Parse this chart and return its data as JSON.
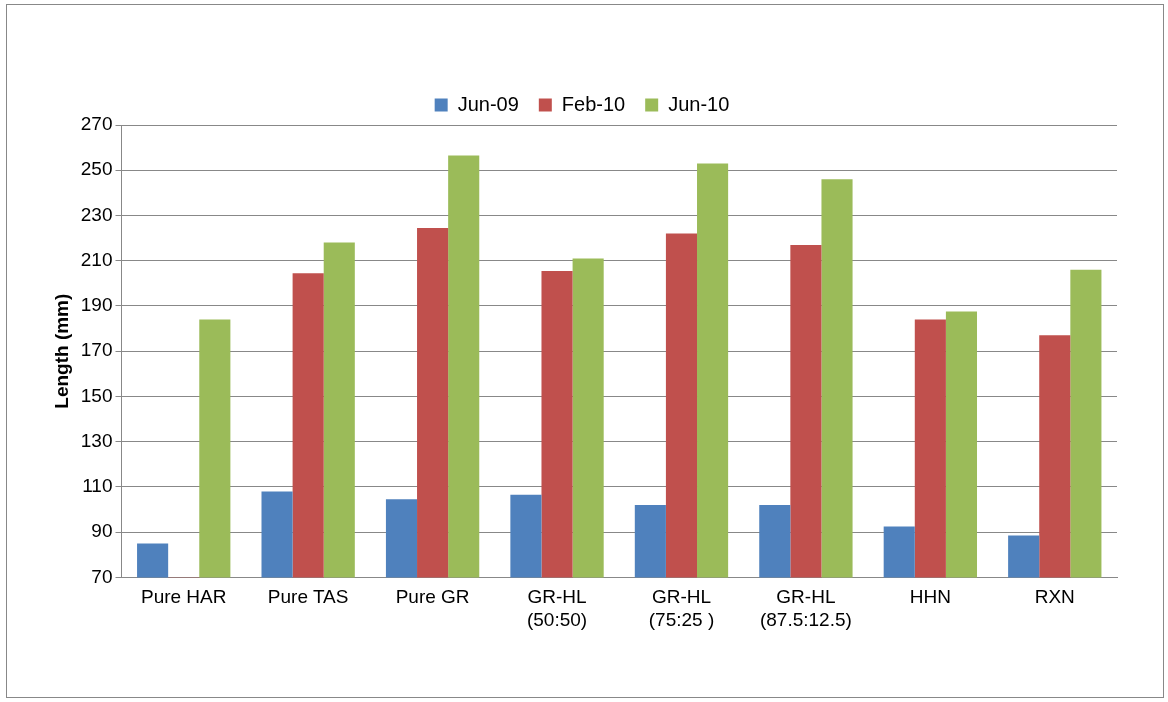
{
  "chart_data": {
    "type": "bar",
    "ylabel": "Length (mm)",
    "categories": [
      "Pure HAR",
      "Pure TAS",
      "Pure GR",
      "GR-HL\n(50:50)",
      "GR-HL\n(75:25 )",
      "GR-HL\n(87.5:12.5)",
      "HHN",
      "RXN"
    ],
    "series": [
      {
        "name": "Jun-09",
        "color": "#4f81bd",
        "values": [
          85,
          108,
          104.5,
          106.5,
          102,
          102,
          92.5,
          88.5
        ]
      },
      {
        "name": "Feb-10",
        "color": "#c0504d",
        "values": [
          70,
          204.5,
          224.5,
          205.5,
          222,
          217,
          184,
          177
        ]
      },
      {
        "name": "Jun-10",
        "color": "#9bbb59",
        "values": [
          184,
          218,
          256.5,
          211,
          253,
          246,
          187.5,
          206
        ]
      }
    ],
    "ylim": [
      70,
      270
    ],
    "yticks": [
      70,
      90,
      110,
      130,
      150,
      170,
      190,
      210,
      230,
      250,
      270
    ],
    "grid": "y",
    "legend": "top"
  }
}
